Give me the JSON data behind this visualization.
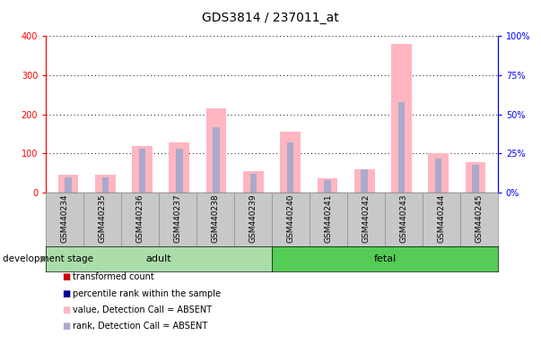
{
  "title": "GDS3814 / 237011_at",
  "samples": [
    "GSM440234",
    "GSM440235",
    "GSM440236",
    "GSM440237",
    "GSM440238",
    "GSM440239",
    "GSM440240",
    "GSM440241",
    "GSM440242",
    "GSM440243",
    "GSM440244",
    "GSM440245"
  ],
  "adult_count": 6,
  "fetal_count": 6,
  "pink_values": [
    47,
    47,
    118,
    128,
    215,
    55,
    155,
    37,
    60,
    380,
    100,
    77
  ],
  "blue_values": [
    10,
    10,
    28,
    28,
    42,
    12,
    32,
    8,
    15,
    58,
    22,
    18
  ],
  "ylim_left": [
    0,
    400
  ],
  "ylim_right": [
    0,
    100
  ],
  "yticks_left": [
    0,
    100,
    200,
    300,
    400
  ],
  "yticks_right": [
    0,
    25,
    50,
    75,
    100
  ],
  "ytick_labels_left": [
    "0",
    "100",
    "200",
    "300",
    "400"
  ],
  "ytick_labels_right": [
    "0%",
    "25%",
    "50%",
    "75%",
    "100%"
  ],
  "pink_color": "#FFB6C1",
  "blue_color": "#AAAACC",
  "red_color": "#CC0000",
  "dark_blue_color": "#000099",
  "adult_bg": "#AAEEA A",
  "fetal_bg": "#55CC55",
  "sample_bg": "#C8C8C8",
  "legend_labels": [
    "transformed count",
    "percentile rank within the sample",
    "value, Detection Call = ABSENT",
    "rank, Detection Call = ABSENT"
  ],
  "legend_colors": [
    "#CC0000",
    "#000099",
    "#FFB6C1",
    "#AAAACC"
  ],
  "dev_stage_label": "development stage",
  "adult_label": "adult",
  "fetal_label": "fetal",
  "title_fontsize": 10,
  "tick_fontsize": 7,
  "legend_fontsize": 7
}
